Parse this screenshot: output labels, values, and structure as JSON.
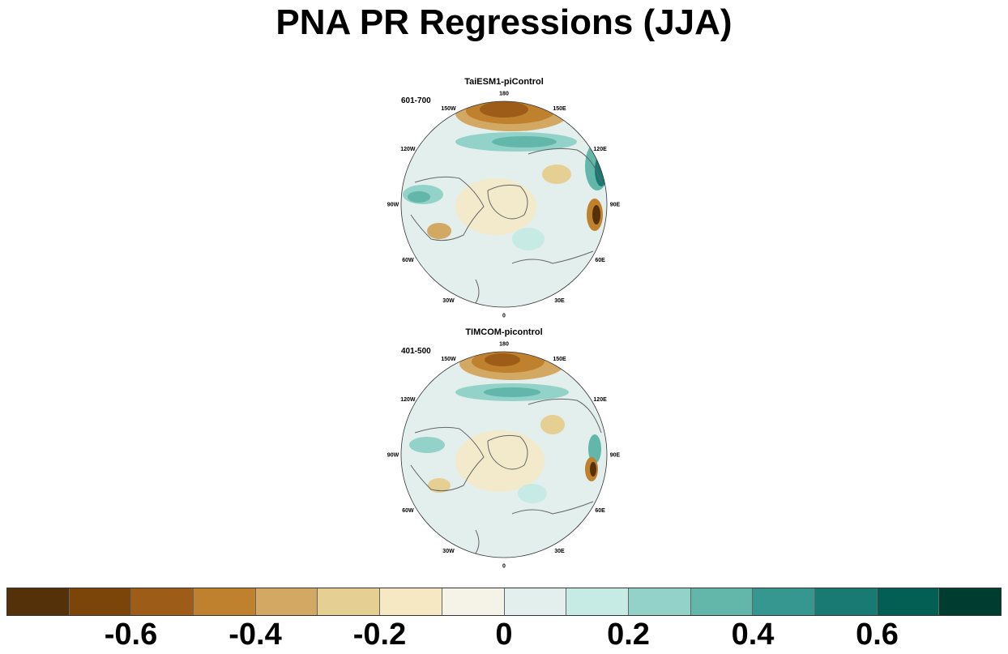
{
  "title": "PNA PR Regressions (JJA)",
  "panels": [
    {
      "title": "TaiESM1-piControl",
      "years": "601-700",
      "lon_labels": [
        "180",
        "150E",
        "120E",
        "90E",
        "60E",
        "30E",
        "0",
        "30W",
        "60W",
        "90W",
        "120W",
        "150W"
      ]
    },
    {
      "title": "TIMCOM-picontrol",
      "years": "401-500",
      "lon_labels": [
        "180",
        "150E",
        "120E",
        "90E",
        "60E",
        "30E",
        "0",
        "30W",
        "60W",
        "90W",
        "120W",
        "150W"
      ]
    }
  ],
  "colorbar": {
    "colors": [
      "#553109",
      "#7b4409",
      "#9d5c17",
      "#bf812d",
      "#d3a862",
      "#e6cf92",
      "#f5e8c3",
      "#f5f2e8",
      "#e3efec",
      "#c6eae4",
      "#92d2c8",
      "#63b6aa",
      "#35978f",
      "#187a72",
      "#035e54",
      "#003d31"
    ],
    "labels": [
      "-0.6",
      "-0.4",
      "-0.2",
      "0",
      "0.2",
      "0.4",
      "0.6"
    ]
  }
}
